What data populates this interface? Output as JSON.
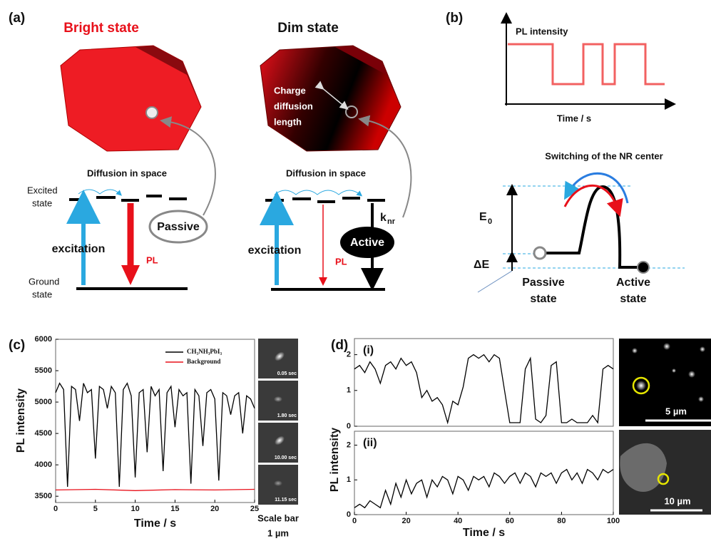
{
  "panel_a": {
    "label": "(a)",
    "bright_title": "Bright state",
    "dim_title": "Dim state",
    "charge_line1": "Charge",
    "charge_line2": "diffusion",
    "charge_line3": "length",
    "diffusion_bright": "Diffusion in space",
    "diffusion_dim": "Diffusion in space",
    "excited_line1": "Excited",
    "excited_line2": "state",
    "ground_line1": "Ground",
    "ground_line2": "state",
    "excitation_bright": "excitation",
    "excitation_dim": "excitation",
    "pl_bright": "PL",
    "pl_dim": "PL",
    "passive": "Passive",
    "active": "Active",
    "k": "k",
    "k_sub": "nr"
  },
  "panel_b": {
    "label": "(b)",
    "pl_intensity": "PL intensity",
    "time": "Time / s",
    "switching": "Switching of the NR center",
    "e": "E",
    "e_sub": "0",
    "delta_e": "ΔE",
    "passive_line1": "Passive",
    "passive_line2": "state",
    "active_line1": "Active",
    "active_line2": "state"
  },
  "panel_c": {
    "label": "(c)",
    "frames": [
      "0.05 sec",
      "1.80 sec",
      "10.00 sec",
      "11.15 sec"
    ],
    "scale_line1": "Scale bar",
    "scale_line2": "1 µm"
  },
  "panel_d": {
    "label": "(d)",
    "y_label": "PL intensity",
    "scale_top": "5 µm",
    "scale_bottom": "10 µm"
  },
  "chart_data": [
    {
      "type": "line",
      "y_label": "PL intensity",
      "x_label": "Time / s",
      "xlim": [
        0,
        25
      ],
      "xticks": [
        0,
        5,
        10,
        15,
        20,
        25
      ],
      "ylim": [
        3400,
        6000
      ],
      "yticks": [
        3500,
        4000,
        4500,
        5000,
        5500,
        6000
      ],
      "series": [
        {
          "name": "CH₃NH₃PbI₃",
          "color": "#000000",
          "x": [
            0,
            0.5,
            1,
            1.5,
            2,
            2.5,
            3,
            3.5,
            4,
            4.5,
            5,
            5.5,
            6,
            6.5,
            7,
            7.5,
            8,
            8.5,
            9,
            9.5,
            10,
            10.5,
            11,
            11.5,
            12,
            12.5,
            13,
            13.5,
            14,
            14.5,
            15,
            15.5,
            16,
            16.5,
            17,
            17.5,
            18,
            18.5,
            19,
            19.5,
            20,
            20.5,
            21,
            21.5,
            22,
            22.5,
            23,
            23.5,
            24,
            24.5,
            25
          ],
          "values": [
            5150,
            5300,
            5200,
            3650,
            5250,
            5200,
            4700,
            5300,
            5150,
            5200,
            4100,
            5250,
            5200,
            4900,
            5250,
            5150,
            3650,
            5200,
            5300,
            5100,
            3800,
            5150,
            5200,
            4200,
            5250,
            5100,
            5200,
            3900,
            5150,
            5250,
            4600,
            5200,
            5100,
            5150,
            3700,
            5200,
            5100,
            4300,
            5150,
            5200,
            5050,
            3750,
            5150,
            5100,
            4800,
            5100,
            5150,
            4500,
            5100,
            5050,
            4900
          ]
        },
        {
          "name": "Background",
          "color": "#e8101a",
          "x": [
            0,
            5,
            10,
            15,
            20,
            25
          ],
          "values": [
            3600,
            3610,
            3590,
            3605,
            3600,
            3610
          ]
        }
      ]
    },
    {
      "type": "line",
      "label": "(i)",
      "xlim": [
        0,
        100
      ],
      "ylim": [
        0,
        2.45
      ],
      "yticks": [
        0,
        1,
        2
      ],
      "series": [
        {
          "color": "#000000",
          "x": [
            0,
            2,
            4,
            6,
            8,
            10,
            12,
            14,
            16,
            18,
            20,
            22,
            24,
            26,
            28,
            30,
            32,
            34,
            36,
            38,
            40,
            42,
            44,
            46,
            48,
            50,
            52,
            54,
            56,
            58,
            60,
            62,
            64,
            66,
            68,
            70,
            72,
            74,
            76,
            78,
            80,
            82,
            84,
            86,
            88,
            90,
            92,
            94,
            96,
            98,
            100
          ],
          "values": [
            1.6,
            1.7,
            1.5,
            1.8,
            1.6,
            1.2,
            1.7,
            1.8,
            1.6,
            1.9,
            1.7,
            1.8,
            1.5,
            0.8,
            1.0,
            0.7,
            0.8,
            0.6,
            0.1,
            0.7,
            0.6,
            1.1,
            1.9,
            2.0,
            1.9,
            2.0,
            1.8,
            2.0,
            1.9,
            1.0,
            0.1,
            0.1,
            0.1,
            1.6,
            1.9,
            0.2,
            0.1,
            0.3,
            1.7,
            1.8,
            0.1,
            0.1,
            0.2,
            0.1,
            0.1,
            0.1,
            0.3,
            0.1,
            1.6,
            1.7,
            1.6
          ]
        }
      ]
    },
    {
      "type": "line",
      "label": "(ii)",
      "x_label": "Time / s",
      "xlim": [
        0,
        100
      ],
      "xticks": [
        0,
        20,
        40,
        60,
        80,
        100
      ],
      "ylim": [
        0,
        2.4
      ],
      "yticks": [
        0,
        1,
        2
      ],
      "series": [
        {
          "color": "#000000",
          "x": [
            0,
            2,
            4,
            6,
            8,
            10,
            12,
            14,
            16,
            18,
            20,
            22,
            24,
            26,
            28,
            30,
            32,
            34,
            36,
            38,
            40,
            42,
            44,
            46,
            48,
            50,
            52,
            54,
            56,
            58,
            60,
            62,
            64,
            66,
            68,
            70,
            72,
            74,
            76,
            78,
            80,
            82,
            84,
            86,
            88,
            90,
            92,
            94,
            96,
            98,
            100
          ],
          "values": [
            0.2,
            0.3,
            0.2,
            0.4,
            0.3,
            0.2,
            0.7,
            0.3,
            0.9,
            0.5,
            1.0,
            0.6,
            0.9,
            1.0,
            0.5,
            1.0,
            0.8,
            1.1,
            1.0,
            0.6,
            1.1,
            1.0,
            0.7,
            1.1,
            1.0,
            1.1,
            0.8,
            1.2,
            1.1,
            0.9,
            1.1,
            1.2,
            0.9,
            1.2,
            1.1,
            0.8,
            1.2,
            1.1,
            1.2,
            0.9,
            1.2,
            1.3,
            1.0,
            1.2,
            0.9,
            1.3,
            1.2,
            1.0,
            1.3,
            1.2,
            1.3
          ]
        }
      ]
    }
  ]
}
